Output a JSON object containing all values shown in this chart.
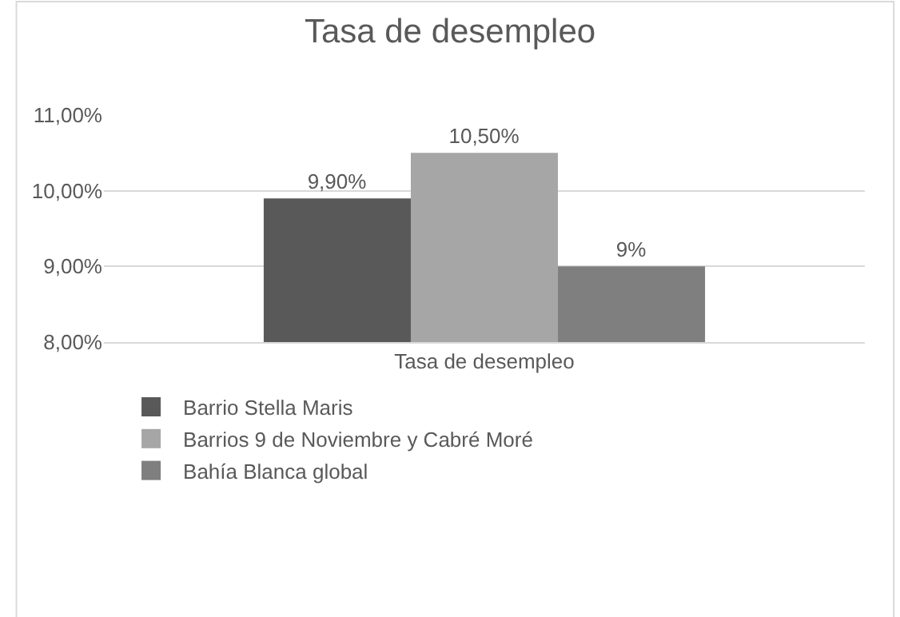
{
  "chart_data": {
    "type": "bar",
    "title": "Tasa de desempleo",
    "categories": [
      "Tasa de desempleo"
    ],
    "series": [
      {
        "name": "Barrio Stella Maris",
        "color": "#595959",
        "values": [
          9.9
        ],
        "value_labels": [
          "9,90%"
        ]
      },
      {
        "name": "Barrios 9 de Noviembre y Cabré Moré",
        "color": "#a6a6a6",
        "values": [
          10.5
        ],
        "value_labels": [
          "10,50%"
        ]
      },
      {
        "name": "Bahía Blanca global",
        "color": "#7f7f7f",
        "values": [
          9
        ],
        "value_labels": [
          "9%"
        ]
      }
    ],
    "ylim": [
      8,
      11
    ],
    "yticks": [
      {
        "value": 8,
        "label": "8,00%"
      },
      {
        "value": 9,
        "label": "9,00%"
      },
      {
        "value": 10,
        "label": "10,00%"
      },
      {
        "value": 11,
        "label": "11,00%"
      }
    ],
    "grid": "y",
    "legend": "bottom"
  }
}
